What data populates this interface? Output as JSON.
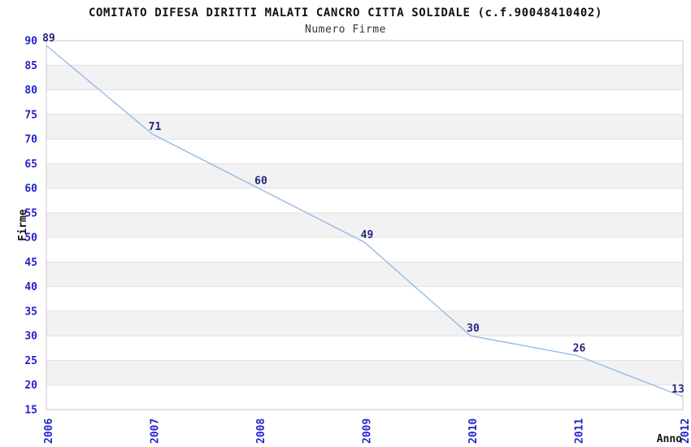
{
  "chart_data": {
    "type": "line",
    "title": "COMITATO DIFESA DIRITTI MALATI CANCRO CITTA SOLIDALE (c.f.90048410402)",
    "subtitle": "Numero Firme",
    "xlabel": "Anno",
    "ylabel": "Firme",
    "categories": [
      "2006",
      "2007",
      "2008",
      "2009",
      "2010",
      "2011",
      "2012"
    ],
    "values": [
      89,
      71,
      60,
      49,
      30,
      26,
      13
    ],
    "ylim": [
      15,
      90
    ],
    "ytick_step": 5,
    "yticks": [
      90,
      85,
      80,
      75,
      70,
      65,
      60,
      55,
      50,
      45,
      40,
      35,
      30,
      25,
      20,
      15
    ],
    "grid": "horizontal-alternating-bands",
    "legend": "none",
    "colors": {
      "line": "#8cb4e6",
      "tick_label": "#2323cc",
      "point_label": "#26267a",
      "band": "#f2f2f2",
      "gridline": "#e2e2e2",
      "border": "#c9c9c9",
      "title": "#111111",
      "subtitle": "#333333",
      "axis_title": "#111111",
      "background": "#ffffff"
    }
  }
}
